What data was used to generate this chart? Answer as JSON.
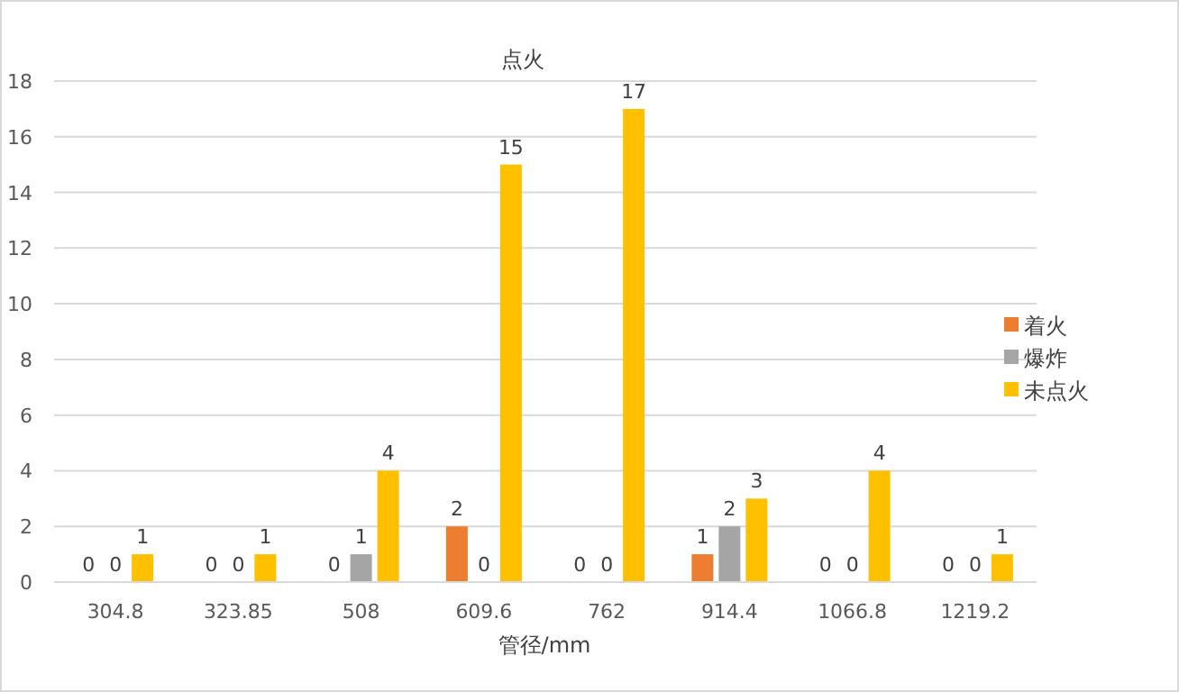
{
  "chart_data": {
    "type": "bar",
    "title": "点火",
    "xlabel": "管径/mm",
    "categories": [
      "304.8",
      "323.85",
      "508",
      "609.6",
      "762",
      "914.4",
      "1066.8",
      "1219.2"
    ],
    "series": [
      {
        "name": "着火",
        "color": "#ed7d31",
        "values": [
          0,
          0,
          0,
          2,
          0,
          1,
          0,
          0
        ]
      },
      {
        "name": "爆炸",
        "color": "#a5a5a5",
        "values": [
          0,
          0,
          1,
          0,
          0,
          2,
          0,
          0
        ]
      },
      {
        "name": "未点火",
        "color": "#ffc000",
        "values": [
          1,
          1,
          4,
          15,
          17,
          3,
          4,
          1
        ]
      }
    ],
    "ylim": [
      0,
      18
    ],
    "yticks": [
      0,
      2,
      4,
      6,
      8,
      10,
      12,
      14,
      16,
      18
    ],
    "grid": "y",
    "legend": "right",
    "data_labels": true
  }
}
